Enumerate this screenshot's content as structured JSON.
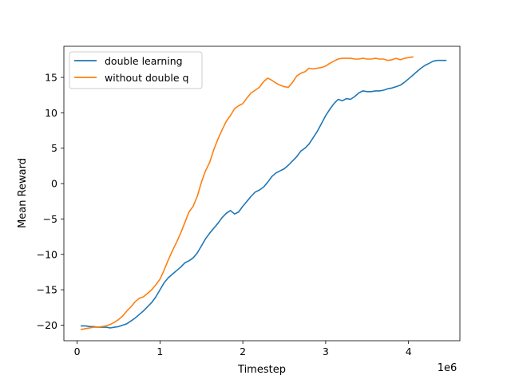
{
  "chart_data": {
    "type": "line",
    "xlabel": "Timestep",
    "ylabel": "Mean Reward",
    "x_offset_label": "1e6",
    "xlim": [
      -0.16,
      4.62
    ],
    "ylim": [
      -22.2,
      19.4
    ],
    "x_ticks": [
      0,
      1,
      2,
      3,
      4
    ],
    "y_ticks": [
      -20,
      -15,
      -10,
      -5,
      0,
      5,
      10,
      15
    ],
    "x_tick_labels": [
      "0",
      "1",
      "2",
      "3",
      "4"
    ],
    "y_tick_labels": [
      "−20",
      "−15",
      "−10",
      "−5",
      "0",
      "5",
      "10",
      "15"
    ],
    "grid": false,
    "legend_position": "upper-left",
    "series": [
      {
        "name": "double learning",
        "color": "#1f77b4",
        "x": [
          0.05,
          0.1,
          0.15,
          0.2,
          0.25,
          0.3,
          0.35,
          0.4,
          0.45,
          0.5,
          0.55,
          0.6,
          0.65,
          0.7,
          0.75,
          0.8,
          0.85,
          0.9,
          0.95,
          1.0,
          1.05,
          1.1,
          1.15,
          1.2,
          1.25,
          1.3,
          1.35,
          1.4,
          1.45,
          1.5,
          1.55,
          1.6,
          1.65,
          1.7,
          1.75,
          1.8,
          1.85,
          1.9,
          1.95,
          2.0,
          2.05,
          2.1,
          2.15,
          2.2,
          2.25,
          2.3,
          2.35,
          2.4,
          2.45,
          2.5,
          2.55,
          2.6,
          2.65,
          2.7,
          2.75,
          2.8,
          2.85,
          2.9,
          2.95,
          3.0,
          3.05,
          3.1,
          3.15,
          3.2,
          3.25,
          3.3,
          3.35,
          3.4,
          3.45,
          3.5,
          3.55,
          3.6,
          3.65,
          3.7,
          3.75,
          3.8,
          3.85,
          3.9,
          3.95,
          4.0,
          4.05,
          4.1,
          4.15,
          4.2,
          4.25,
          4.3,
          4.35,
          4.4,
          4.45
        ],
        "values": [
          -20.1,
          -20.1,
          -20.2,
          -20.2,
          -20.3,
          -20.3,
          -20.3,
          -20.4,
          -20.3,
          -20.2,
          -20.0,
          -19.8,
          -19.4,
          -19.0,
          -18.5,
          -18.0,
          -17.4,
          -16.8,
          -16.0,
          -15.0,
          -14.0,
          -13.3,
          -12.8,
          -12.3,
          -11.8,
          -11.2,
          -10.9,
          -10.5,
          -9.8,
          -8.8,
          -7.8,
          -7.0,
          -6.3,
          -5.6,
          -4.8,
          -4.2,
          -3.8,
          -4.3,
          -4.0,
          -3.2,
          -2.5,
          -1.8,
          -1.2,
          -0.9,
          -0.5,
          0.2,
          1.0,
          1.5,
          1.8,
          2.1,
          2.6,
          3.2,
          3.8,
          4.6,
          5.0,
          5.6,
          6.5,
          7.4,
          8.5,
          9.6,
          10.5,
          11.3,
          11.9,
          11.7,
          12.0,
          11.9,
          12.3,
          12.8,
          13.1,
          13.0,
          13.0,
          13.1,
          13.1,
          13.2,
          13.4,
          13.5,
          13.7,
          13.9,
          14.3,
          14.8,
          15.3,
          15.8,
          16.3,
          16.7,
          17.0,
          17.3,
          17.4,
          17.4,
          17.4
        ]
      },
      {
        "name": "without double q",
        "color": "#ff7f0e",
        "x": [
          0.05,
          0.1,
          0.15,
          0.2,
          0.25,
          0.3,
          0.35,
          0.4,
          0.45,
          0.5,
          0.55,
          0.6,
          0.65,
          0.7,
          0.75,
          0.8,
          0.85,
          0.9,
          0.95,
          1.0,
          1.05,
          1.1,
          1.15,
          1.2,
          1.25,
          1.3,
          1.35,
          1.4,
          1.45,
          1.5,
          1.55,
          1.6,
          1.65,
          1.7,
          1.75,
          1.8,
          1.85,
          1.9,
          1.95,
          2.0,
          2.05,
          2.1,
          2.15,
          2.2,
          2.25,
          2.3,
          2.35,
          2.4,
          2.45,
          2.5,
          2.55,
          2.6,
          2.65,
          2.7,
          2.75,
          2.8,
          2.85,
          2.9,
          2.95,
          3.0,
          3.05,
          3.1,
          3.15,
          3.2,
          3.25,
          3.3,
          3.35,
          3.4,
          3.45,
          3.5,
          3.55,
          3.6,
          3.65,
          3.7,
          3.75,
          3.8,
          3.85,
          3.9,
          3.95,
          4.0,
          4.05
        ],
        "values": [
          -20.6,
          -20.5,
          -20.4,
          -20.3,
          -20.3,
          -20.2,
          -20.1,
          -19.9,
          -19.6,
          -19.2,
          -18.7,
          -18.0,
          -17.4,
          -16.7,
          -16.2,
          -16.0,
          -15.5,
          -15.0,
          -14.3,
          -13.5,
          -12.2,
          -10.8,
          -9.5,
          -8.3,
          -7.0,
          -5.5,
          -4.0,
          -3.2,
          -1.8,
          0.2,
          1.8,
          3.0,
          4.8,
          6.3,
          7.6,
          8.8,
          9.6,
          10.6,
          11.0,
          11.3,
          12.1,
          12.8,
          13.2,
          13.6,
          14.4,
          14.9,
          14.6,
          14.2,
          13.9,
          13.7,
          13.6,
          14.3,
          15.2,
          15.6,
          15.8,
          16.3,
          16.2,
          16.3,
          16.4,
          16.6,
          17.0,
          17.3,
          17.6,
          17.7,
          17.7,
          17.7,
          17.6,
          17.6,
          17.7,
          17.6,
          17.6,
          17.7,
          17.6,
          17.6,
          17.4,
          17.5,
          17.7,
          17.5,
          17.7,
          17.8,
          17.9
        ]
      }
    ]
  }
}
